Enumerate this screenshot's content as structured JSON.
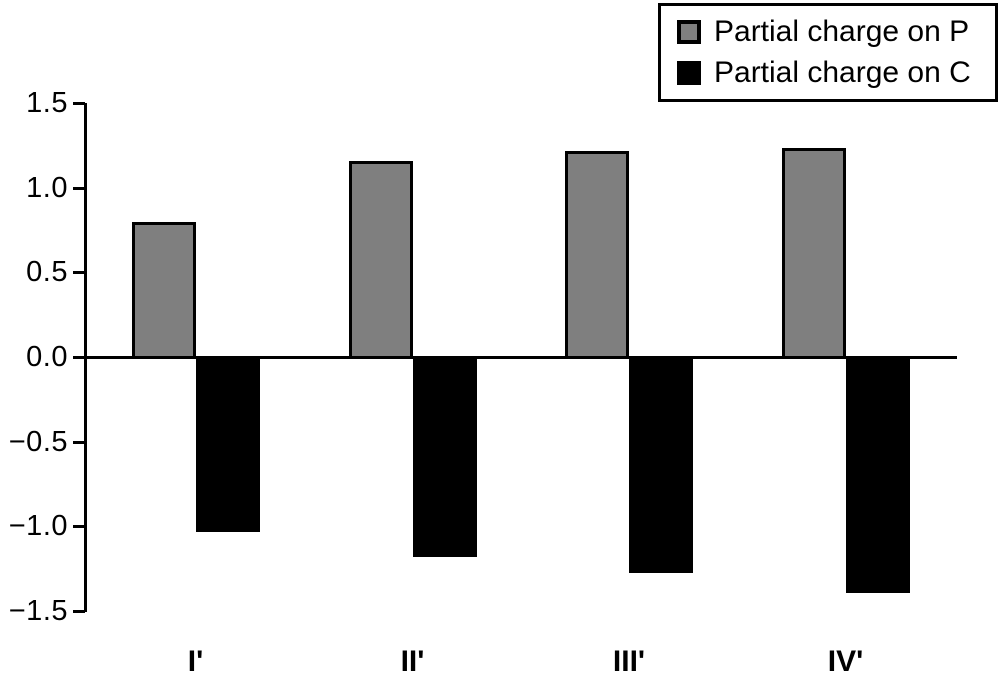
{
  "figure": {
    "background": "#ffffff",
    "axis_color": "#000000"
  },
  "legend": {
    "position": "top-right",
    "items": [
      {
        "label": "Partial charge on P",
        "color": "#7f7f7f",
        "swatch": "gray-square-black-border"
      },
      {
        "label": "Partial charge on C",
        "color": "#000000",
        "swatch": "black-square"
      }
    ]
  },
  "chart_data": {
    "type": "bar",
    "title": "",
    "xlabel": "",
    "ylabel": "",
    "categories": [
      "I'",
      "II'",
      "III'",
      "IV'"
    ],
    "series": [
      {
        "name": "Partial charge on P",
        "color": "#7f7f7f",
        "values": [
          0.8,
          1.16,
          1.22,
          1.24
        ]
      },
      {
        "name": "Partial charge on C",
        "color": "#000000",
        "values": [
          -1.03,
          -1.18,
          -1.27,
          -1.39
        ]
      }
    ],
    "ylim": [
      -1.5,
      1.5
    ],
    "yticks": [
      1.5,
      1.0,
      0.5,
      0.0,
      -0.5,
      -1.0,
      -1.5
    ],
    "ytick_labels": [
      "1.5",
      "1.0",
      "0.5",
      "0.0",
      "−0.5",
      "−1.0",
      "−1.5"
    ],
    "grid": false,
    "zero_line": true,
    "legend_position": "top-right"
  }
}
